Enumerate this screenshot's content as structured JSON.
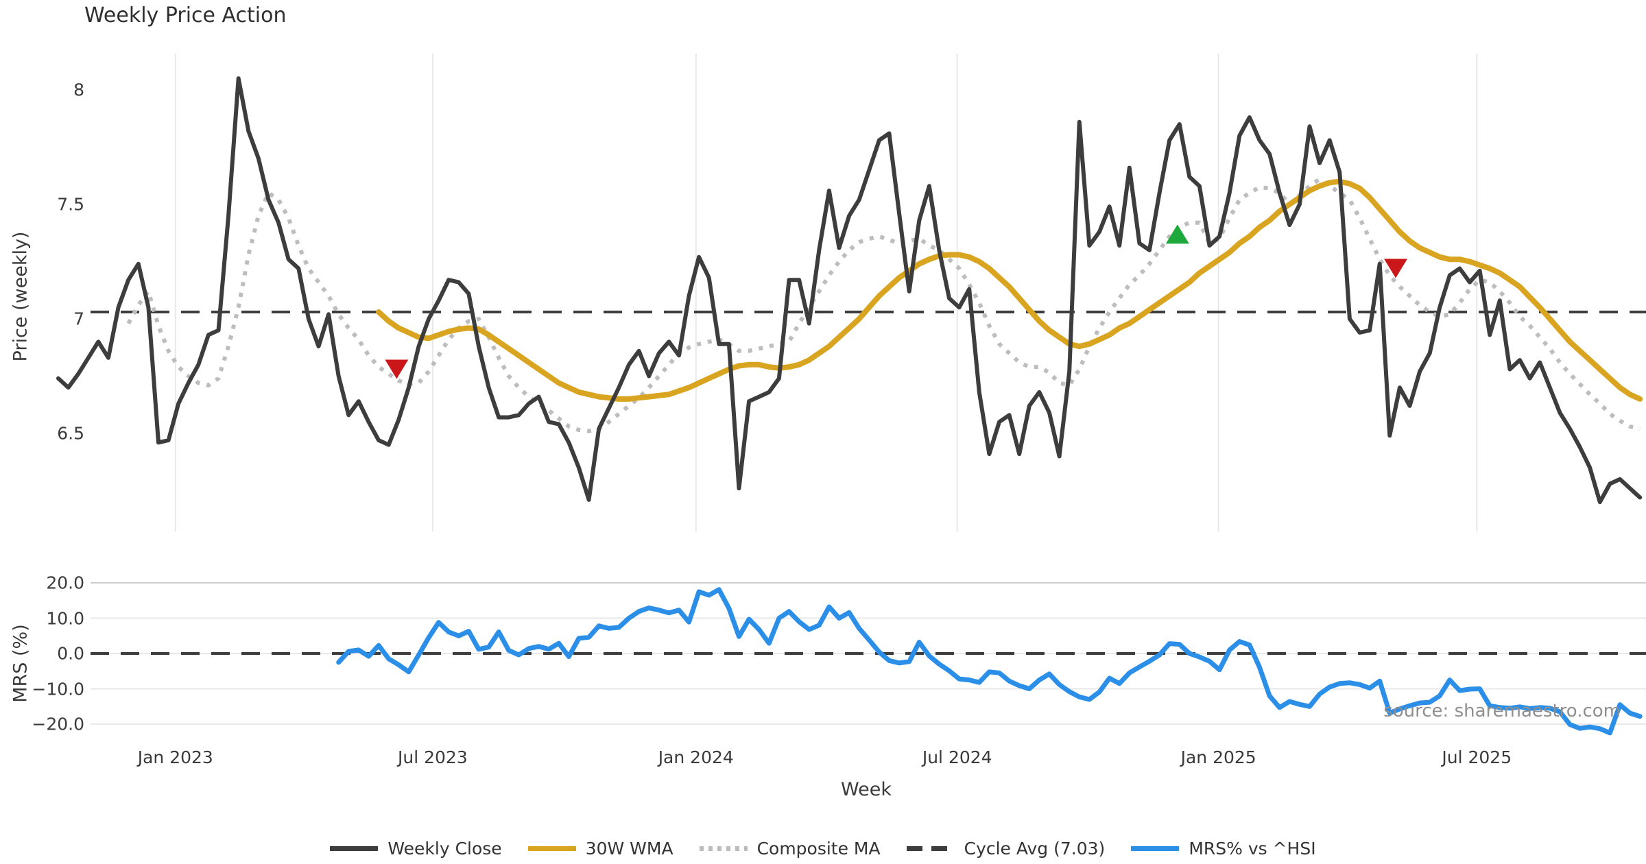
{
  "title": "Weekly Price Action",
  "source_note": "source: sharemaestro.com",
  "colors": {
    "close": "#3d3d3d",
    "wma": "#d9a521",
    "composite": "#bdbdbd",
    "cycle": "#3d3d3d",
    "mrs": "#2b8fe8",
    "sell": "#c9171a",
    "buy": "#1fa83c",
    "grid": "#e8e8e8",
    "grid_strong": "#cfcfcf",
    "text": "#3a3a3a"
  },
  "legend": {
    "items": [
      {
        "label": "Weekly Close",
        "style": "solid",
        "color_key": "close"
      },
      {
        "label": "30W WMA",
        "style": "solid",
        "color_key": "wma"
      },
      {
        "label": "Composite MA",
        "style": "dotted",
        "color_key": "composite"
      },
      {
        "label": "Cycle Avg (7.03)",
        "style": "dashed",
        "color_key": "cycle"
      },
      {
        "label": "MRS% vs ^HSI",
        "style": "solid",
        "color_key": "mrs"
      }
    ]
  },
  "chart_data": {
    "type": "line",
    "title": "Weekly Price Action",
    "x_axis": {
      "label": "Week",
      "tick_labels": [
        "Jan 2023",
        "Jul 2023",
        "Jan 2024",
        "Jul 2024",
        "Jan 2025",
        "Jul 2025"
      ],
      "tick_week_indices": [
        11.7,
        37.4,
        63.7,
        89.8,
        115.9,
        141.7
      ],
      "total_weeks": 159
    },
    "price_panel": {
      "ylabel": "Price (weekly)",
      "y_ticks": [
        8,
        7.5,
        7,
        6.5
      ],
      "y_tick_labels": [
        "8",
        "7.5",
        "7",
        "6.5"
      ],
      "ylim": [
        6.1,
        8.15
      ],
      "cycle_avg": 7.03,
      "series": {
        "weekly_close": {
          "name": "Weekly Close",
          "start_week": 0,
          "values": [
            6.74,
            6.7,
            6.76,
            6.83,
            6.9,
            6.83,
            7.05,
            7.17,
            7.24,
            7.05,
            6.46,
            6.47,
            6.63,
            6.72,
            6.8,
            6.93,
            6.95,
            7.45,
            8.05,
            7.82,
            7.7,
            7.52,
            7.42,
            7.26,
            7.22,
            7.0,
            6.88,
            7.02,
            6.75,
            6.58,
            6.64,
            6.55,
            6.47,
            6.45,
            6.56,
            6.7,
            6.88,
            7.0,
            7.08,
            7.17,
            7.16,
            7.11,
            6.88,
            6.7,
            6.57,
            6.57,
            6.58,
            6.63,
            6.66,
            6.55,
            6.54,
            6.46,
            6.35,
            6.21,
            6.52,
            6.61,
            6.7,
            6.8,
            6.86,
            6.75,
            6.85,
            6.9,
            6.84,
            7.1,
            7.27,
            7.18,
            6.89,
            6.89,
            6.26,
            6.64,
            6.66,
            6.68,
            6.74,
            7.17,
            7.17,
            6.98,
            7.3,
            7.56,
            7.31,
            7.45,
            7.52,
            7.65,
            7.78,
            7.81,
            7.46,
            7.12,
            7.43,
            7.58,
            7.3,
            7.09,
            7.05,
            7.13,
            6.68,
            6.41,
            6.55,
            6.58,
            6.41,
            6.62,
            6.68,
            6.59,
            6.4,
            6.77,
            7.86,
            7.32,
            7.38,
            7.49,
            7.32,
            7.66,
            7.33,
            7.3,
            7.55,
            7.78,
            7.85,
            7.62,
            7.58,
            7.32,
            7.36,
            7.55,
            7.8,
            7.88,
            7.78,
            7.72,
            7.55,
            7.41,
            7.5,
            7.84,
            7.68,
            7.78,
            7.64,
            7.0,
            6.94,
            6.95,
            7.24,
            6.49,
            6.7,
            6.62,
            6.77,
            6.85,
            7.05,
            7.19,
            7.22,
            7.16,
            7.21,
            6.93,
            7.08,
            6.78,
            6.82,
            6.74,
            6.81,
            6.7,
            6.59,
            6.52,
            6.44,
            6.35,
            6.2,
            6.28,
            6.3,
            6.26,
            6.22
          ]
        },
        "wma_30w": {
          "name": "30W WMA",
          "start_week": 32,
          "values": [
            7.03,
            6.99,
            6.96,
            6.94,
            6.92,
            6.915,
            6.93,
            6.945,
            6.955,
            6.96,
            6.955,
            6.93,
            6.9,
            6.87,
            6.84,
            6.81,
            6.78,
            6.75,
            6.72,
            6.7,
            6.68,
            6.67,
            6.66,
            6.655,
            6.65,
            6.65,
            6.655,
            6.66,
            6.665,
            6.67,
            6.685,
            6.7,
            6.72,
            6.74,
            6.76,
            6.78,
            6.795,
            6.8,
            6.8,
            6.79,
            6.785,
            6.79,
            6.8,
            6.82,
            6.85,
            6.88,
            6.92,
            6.96,
            7.0,
            7.05,
            7.1,
            7.14,
            7.18,
            7.21,
            7.24,
            7.26,
            7.275,
            7.28,
            7.28,
            7.27,
            7.25,
            7.22,
            7.18,
            7.14,
            7.09,
            7.04,
            6.99,
            6.95,
            6.92,
            6.89,
            6.88,
            6.89,
            6.91,
            6.93,
            6.96,
            6.98,
            7.01,
            7.04,
            7.07,
            7.1,
            7.13,
            7.16,
            7.2,
            7.23,
            7.26,
            7.29,
            7.33,
            7.36,
            7.4,
            7.43,
            7.47,
            7.5,
            7.53,
            7.56,
            7.58,
            7.595,
            7.6,
            7.59,
            7.57,
            7.53,
            7.48,
            7.43,
            7.38,
            7.34,
            7.31,
            7.29,
            7.27,
            7.26,
            7.26,
            7.25,
            7.235,
            7.22,
            7.2,
            7.17,
            7.14,
            7.095,
            7.05,
            7.0,
            6.95,
            6.9,
            6.86,
            6.82,
            6.78,
            6.74,
            6.7,
            6.67,
            6.65
          ]
        },
        "composite_ma": {
          "name": "Composite MA",
          "start_week": 7,
          "values": [
            6.98,
            7.06,
            7.12,
            6.97,
            6.86,
            6.79,
            6.75,
            6.72,
            6.71,
            6.74,
            6.88,
            7.05,
            7.28,
            7.45,
            7.55,
            7.52,
            7.44,
            7.32,
            7.22,
            7.16,
            7.1,
            7.02,
            6.96,
            6.91,
            6.84,
            6.79,
            6.76,
            6.73,
            6.715,
            6.72,
            6.77,
            6.84,
            6.91,
            6.96,
            6.99,
            7.0,
            6.92,
            6.83,
            6.75,
            6.7,
            6.66,
            6.63,
            6.6,
            6.565,
            6.53,
            6.515,
            6.51,
            6.52,
            6.55,
            6.585,
            6.62,
            6.655,
            6.7,
            6.75,
            6.8,
            6.85,
            6.875,
            6.89,
            6.9,
            6.91,
            6.89,
            6.86,
            6.86,
            6.87,
            6.88,
            6.89,
            6.9,
            6.98,
            7.05,
            7.12,
            7.19,
            7.25,
            7.3,
            7.335,
            7.35,
            7.36,
            7.345,
            7.33,
            7.34,
            7.35,
            7.32,
            7.3,
            7.26,
            7.22,
            7.15,
            7.07,
            6.97,
            6.89,
            6.85,
            6.81,
            6.79,
            6.79,
            6.765,
            6.72,
            6.71,
            6.78,
            6.88,
            6.96,
            7.03,
            7.09,
            7.15,
            7.19,
            7.24,
            7.3,
            7.36,
            7.4,
            7.42,
            7.42,
            7.33,
            7.35,
            7.44,
            7.52,
            7.55,
            7.575,
            7.57,
            7.55,
            7.5,
            7.54,
            7.58,
            7.61,
            7.58,
            7.55,
            7.52,
            7.44,
            7.35,
            7.26,
            7.19,
            7.14,
            7.1,
            7.06,
            7.03,
            7.01,
            7.02,
            7.07,
            7.13,
            7.17,
            7.16,
            7.12,
            7.07,
            7.01,
            6.97,
            6.92,
            6.87,
            6.81,
            6.76,
            6.715,
            6.67,
            6.63,
            6.585,
            6.555,
            6.53,
            6.52
          ]
        }
      },
      "markers": [
        {
          "type": "sell",
          "week": 33.8,
          "price": 6.78
        },
        {
          "type": "buy",
          "week": 111.8,
          "price": 7.37
        },
        {
          "type": "sell",
          "week": 133.6,
          "price": 7.22
        }
      ]
    },
    "mrs_panel": {
      "ylabel": "MRS (%)",
      "y_ticks": [
        20,
        10,
        0,
        -10,
        -20
      ],
      "y_tick_labels": [
        "20.0",
        "10.0",
        "0.0",
        "−10.0",
        "−20.0"
      ],
      "ylim": [
        -24,
        22
      ],
      "zero_line": 0,
      "series": {
        "mrs_vs_hsi": {
          "name": "MRS% vs ^HSI",
          "start_week": 28,
          "values": [
            -2.5,
            0.6,
            1.0,
            -0.8,
            2.3,
            -1.5,
            -3.2,
            -5.2,
            -0.4,
            4.5,
            8.8,
            6.1,
            5.0,
            6.3,
            1.2,
            1.8,
            6.1,
            0.9,
            -0.4,
            1.4,
            2.0,
            1.2,
            2.9,
            -0.9,
            4.3,
            4.6,
            7.8,
            7.1,
            7.4,
            10.0,
            11.9,
            12.9,
            12.3,
            11.5,
            12.3,
            8.9,
            17.5,
            16.5,
            18.1,
            12.8,
            4.8,
            9.7,
            6.8,
            2.9,
            10.0,
            11.9,
            9.0,
            6.8,
            8.0,
            13.2,
            10.0,
            11.6,
            7.1,
            3.8,
            0.4,
            -2.0,
            -2.7,
            -2.3,
            3.2,
            -0.7,
            -3.0,
            -4.9,
            -7.2,
            -7.5,
            -8.2,
            -5.2,
            -5.5,
            -7.8,
            -9.1,
            -10.0,
            -7.5,
            -5.8,
            -8.8,
            -10.8,
            -12.3,
            -13.0,
            -10.9,
            -7.0,
            -8.5,
            -5.5,
            -3.8,
            -2.2,
            -0.4,
            2.8,
            2.6,
            0.0,
            -1.0,
            -2.2,
            -4.6,
            1.0,
            3.4,
            2.4,
            -3.9,
            -12.0,
            -15.3,
            -13.6,
            -14.4,
            -15.0,
            -11.5,
            -9.5,
            -8.5,
            -8.3,
            -8.8,
            -9.8,
            -7.8,
            -16.9,
            -15.7,
            -14.8,
            -14.0,
            -13.8,
            -12.0,
            -7.5,
            -10.5,
            -10.1,
            -10.0,
            -14.8,
            -15.3,
            -15.5,
            -15.1,
            -15.6,
            -15.3,
            -15.5,
            -16.5,
            -20.1,
            -21.2,
            -20.8,
            -21.3,
            -22.5,
            -14.5,
            -16.9,
            -17.8
          ]
        }
      }
    }
  }
}
